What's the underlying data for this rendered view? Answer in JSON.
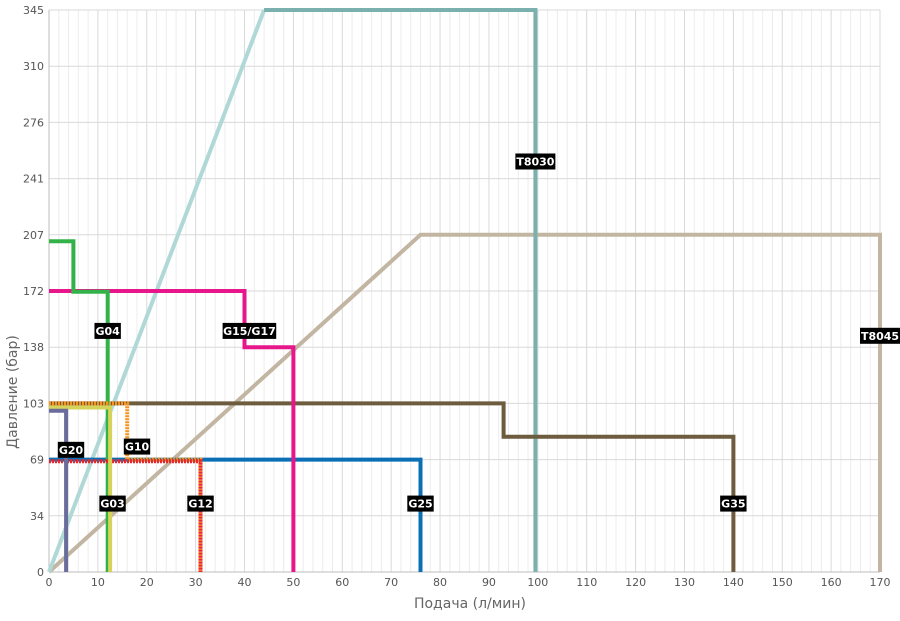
{
  "chart_data": {
    "type": "line",
    "title": "",
    "xlabel": "Подача (л/мин)",
    "ylabel": "Давление (бар)",
    "xlim": [
      0,
      170
    ],
    "ylim": [
      0,
      345
    ],
    "grid": true,
    "x_minor_step": 2,
    "x_ticks": [
      0,
      10,
      20,
      30,
      40,
      50,
      60,
      70,
      80,
      90,
      100,
      110,
      120,
      130,
      140,
      150,
      160,
      170
    ],
    "x_tick_labels": [
      "0",
      "10",
      "20",
      "30",
      "40",
      "50",
      "60",
      "70",
      "80",
      "90",
      "100",
      "110",
      "120",
      "130",
      "140",
      "150",
      "160",
      "170"
    ],
    "y_ticks": [
      0,
      34.5,
      69,
      103.5,
      138,
      172.5,
      207,
      241.5,
      276,
      310.5,
      345
    ],
    "y_tick_labels": [
      "0",
      "34",
      "69",
      "103",
      "138",
      "172",
      "207",
      "241",
      "276",
      "310",
      "345"
    ],
    "series": [
      {
        "name": "T8045",
        "color": "#c2b6a3",
        "width": 4,
        "dashed": false,
        "points": [
          [
            0,
            0
          ],
          [
            76,
            207
          ],
          [
            170,
            207
          ],
          [
            170,
            0
          ]
        ],
        "label_pos": [
          170,
          145
        ]
      },
      {
        "name": "",
        "color": "#b0d8d6",
        "width": 4,
        "dashed": false,
        "points": [
          [
            0,
            0
          ],
          [
            44,
            345
          ]
        ]
      },
      {
        "name": "T8030",
        "color": "#7ab0ae",
        "width": 4,
        "dashed": false,
        "points": [
          [
            44,
            345
          ],
          [
            99.5,
            345
          ],
          [
            99.5,
            0
          ]
        ],
        "label_pos": [
          99.5,
          252
        ]
      },
      {
        "name": "G35",
        "color": "#6d5c3e",
        "width": 4,
        "dashed": false,
        "points": [
          [
            0,
            103.5
          ],
          [
            93,
            103.5
          ],
          [
            93,
            83
          ],
          [
            140,
            83
          ],
          [
            140,
            0
          ]
        ],
        "label_pos": [
          140,
          42
        ]
      },
      {
        "name": "G25",
        "color": "#0a6fb5",
        "width": 4,
        "dashed": false,
        "points": [
          [
            0,
            69
          ],
          [
            76,
            69
          ],
          [
            76,
            0
          ]
        ],
        "label_pos": [
          76,
          42
        ]
      },
      {
        "name": "G15/G17",
        "color": "#e8168b",
        "width": 4,
        "dashed": false,
        "points": [
          [
            0,
            172.5
          ],
          [
            40,
            172.5
          ],
          [
            40,
            138
          ],
          [
            50,
            138
          ],
          [
            50,
            0
          ]
        ],
        "label_pos": [
          41,
          148
        ]
      },
      {
        "name": "G04",
        "color": "#33b24a",
        "width": 4,
        "dashed": false,
        "points": [
          [
            0,
            203
          ],
          [
            5,
            203
          ],
          [
            5,
            172
          ],
          [
            12,
            172
          ],
          [
            12,
            0
          ]
        ],
        "label_pos": [
          12,
          148
        ]
      },
      {
        "name": "G10",
        "color": "#f7941d",
        "width": 4,
        "dashed": true,
        "points": [
          [
            0,
            103.5
          ],
          [
            16,
            103.5
          ],
          [
            16,
            69
          ],
          [
            31,
            69
          ],
          [
            31,
            0
          ]
        ],
        "label_pos": [
          18,
          77
        ]
      },
      {
        "name": "G12",
        "color": "#e8262e",
        "width": 4,
        "dashed": true,
        "points": [
          [
            0,
            68
          ],
          [
            31,
            68
          ],
          [
            31,
            0
          ]
        ],
        "label_pos": [
          31,
          42
        ]
      },
      {
        "name": "G03",
        "color": "#d6d35a",
        "width": 4,
        "dashed": false,
        "points": [
          [
            0,
            101
          ],
          [
            12.5,
            101
          ],
          [
            12.5,
            0
          ]
        ],
        "label_pos": [
          13,
          42
        ]
      },
      {
        "name": "G20",
        "color": "#6a6c9c",
        "width": 4,
        "dashed": false,
        "points": [
          [
            0,
            99
          ],
          [
            3.5,
            99
          ],
          [
            3.5,
            0
          ]
        ],
        "label_pos": [
          4.5,
          75
        ]
      }
    ]
  }
}
